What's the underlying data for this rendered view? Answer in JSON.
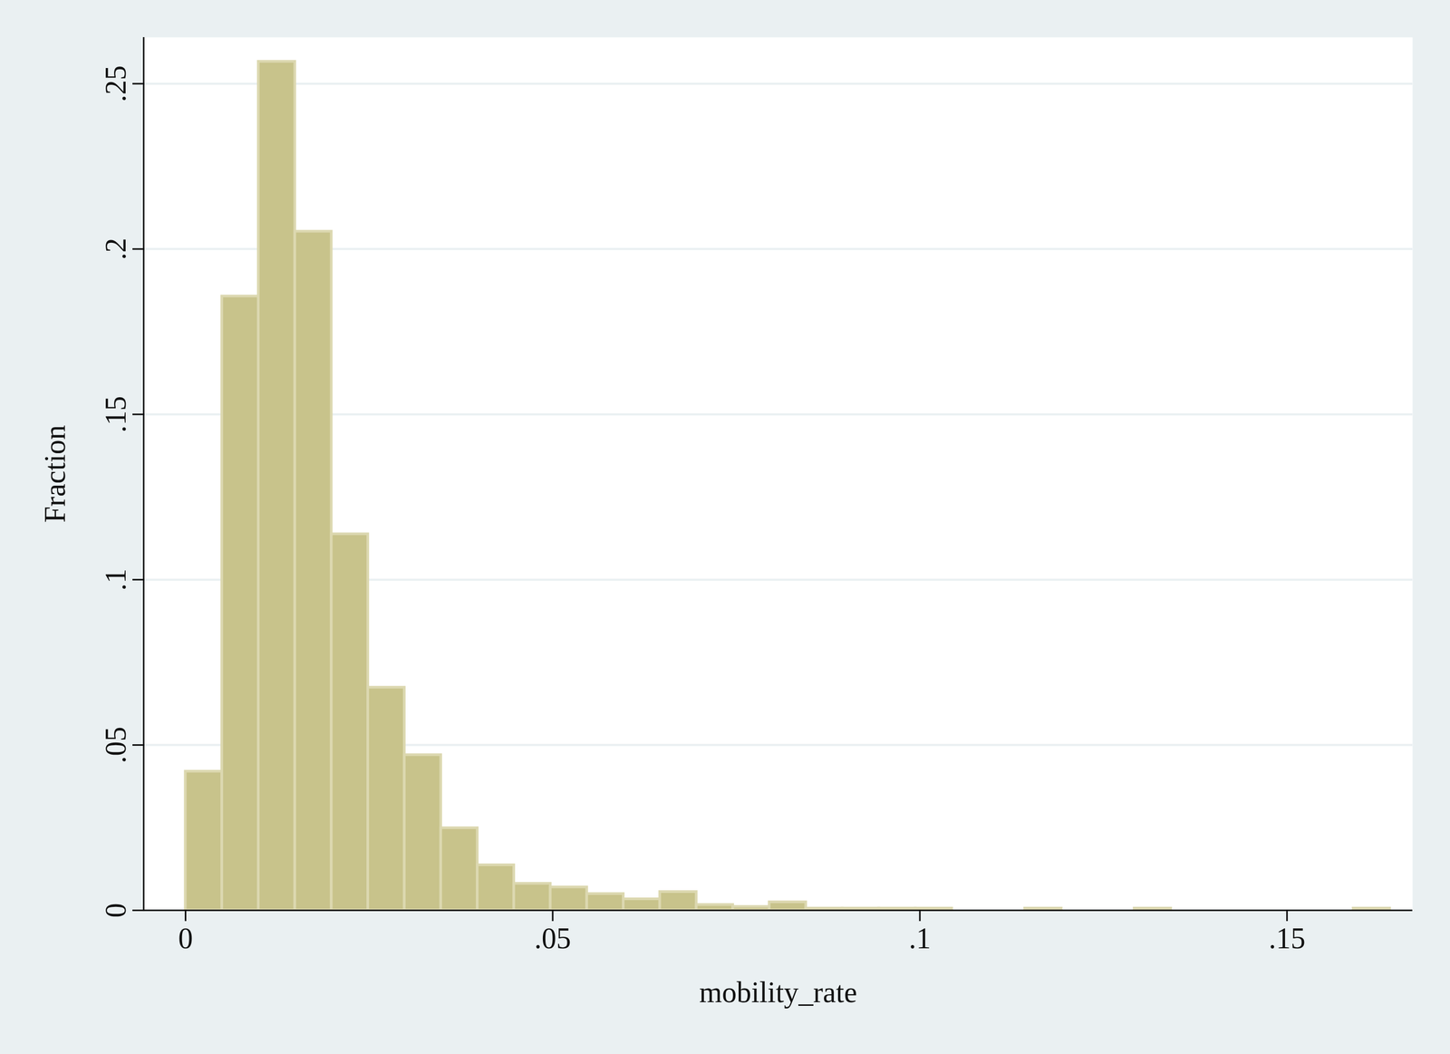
{
  "chart_data": {
    "type": "histogram",
    "x_label": "mobility_rate",
    "y_label": "Fraction",
    "bins": [
      0,
      0.00497,
      0.00994,
      0.01491,
      0.01988,
      0.02485,
      0.02982,
      0.03479,
      0.03976,
      0.04473,
      0.0497,
      0.05467,
      0.05964,
      0.06461,
      0.06958,
      0.07455,
      0.07952,
      0.08449,
      0.08946,
      0.09443,
      0.0994,
      0.10437,
      0.10934,
      0.11431,
      0.11928,
      0.12425,
      0.12922,
      0.13419,
      0.13916,
      0.14413,
      0.1491,
      0.15407,
      0.15904,
      0.16401
    ],
    "values": [
      0.042,
      0.1857,
      0.2567,
      0.2053,
      0.1138,
      0.0674,
      0.047,
      0.0249,
      0.0137,
      0.0081,
      0.007,
      0.005,
      0.0034,
      0.0056,
      0.0017,
      0.0011,
      0.0025,
      0.0006,
      0.0006,
      0.0006,
      0.0006,
      0,
      0,
      0.0006,
      0,
      0,
      0.0006,
      0,
      0,
      0,
      0,
      0,
      0.0006
    ],
    "color": "#c8c38b",
    "xlim": [
      -0.0057,
      0.1671
    ],
    "ylim": [
      0,
      0.264
    ],
    "xticks": [
      0,
      {
        "value": 0.05,
        "label": ".05"
      },
      {
        "value": 0.1,
        "label": ".1"
      },
      {
        "value": 0.15,
        "label": ".15"
      }
    ],
    "yticks": [
      0,
      {
        "value": 0.05,
        "label": ".05"
      },
      {
        "value": 0.1,
        "label": ".1"
      },
      {
        "value": 0.15,
        "label": ".15"
      },
      {
        "value": 0.2,
        "label": ".2"
      },
      {
        "value": 0.25,
        "label": ".25"
      }
    ],
    "grid": true
  }
}
